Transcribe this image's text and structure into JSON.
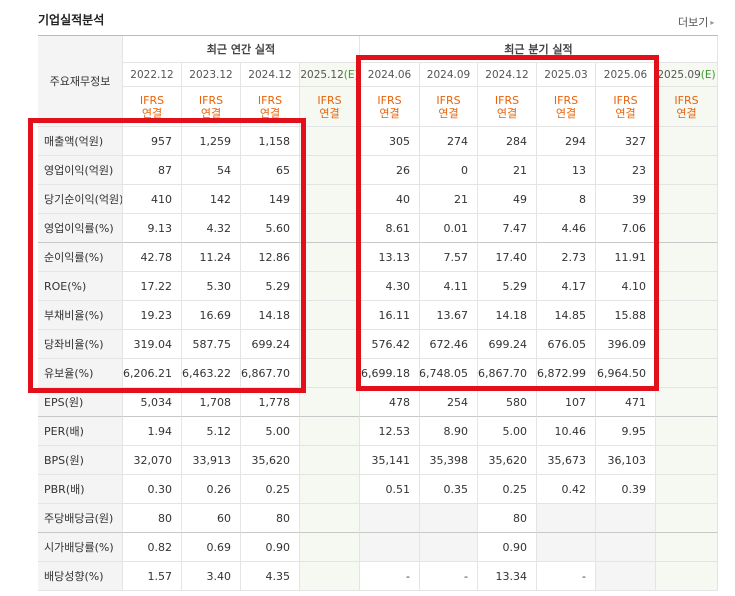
{
  "header": {
    "title": "기업실적분석",
    "more": "더보기"
  },
  "table": {
    "corner": "주요재무정보",
    "groups": [
      {
        "label": "최근 연간 실적",
        "span": 4
      },
      {
        "label": "최근 분기 실적",
        "span": 6
      }
    ],
    "columns": [
      {
        "period": "2022.12",
        "basis": [
          "IFRS",
          "연결"
        ]
      },
      {
        "period": "2023.12",
        "basis": [
          "IFRS",
          "연결"
        ]
      },
      {
        "period": "2024.12",
        "basis": [
          "IFRS",
          "연결"
        ]
      },
      {
        "period": "2025.12",
        "mark": "(E)",
        "basis": [
          "IFRS",
          "연결"
        ]
      },
      {
        "period": "2024.06",
        "basis": [
          "IFRS",
          "연결"
        ]
      },
      {
        "period": "2024.09",
        "basis": [
          "IFRS",
          "연결"
        ]
      },
      {
        "period": "2024.12",
        "basis": [
          "IFRS",
          "연결"
        ]
      },
      {
        "period": "2025.03",
        "basis": [
          "IFRS",
          "연결"
        ]
      },
      {
        "period": "2025.06",
        "basis": [
          "IFRS",
          "연결"
        ]
      },
      {
        "period": "2025.09",
        "mark": "(E)",
        "basis": [
          "IFRS",
          "연결"
        ]
      }
    ],
    "rows": [
      {
        "label": "매출액(억원)",
        "cells": [
          "957",
          "1,259",
          "1,158",
          null,
          "305",
          "274",
          "284",
          "294",
          "327",
          null
        ]
      },
      {
        "label": "영업이익(억원)",
        "cells": [
          "87",
          "54",
          "65",
          null,
          "26",
          "0",
          "21",
          "13",
          "23",
          null
        ]
      },
      {
        "label": "당기순이익(억원)",
        "cells": [
          "410",
          "142",
          "149",
          null,
          "40",
          "21",
          "49",
          "8",
          "39",
          null
        ]
      },
      {
        "label": "영업이익률(%)",
        "cells": [
          "9.13",
          "4.32",
          "5.60",
          null,
          "8.61",
          "0.01",
          "7.47",
          "4.46",
          "7.06",
          null
        ]
      },
      {
        "label": "순이익률(%)",
        "cells": [
          "42.78",
          "11.24",
          "12.86",
          null,
          "13.13",
          "7.57",
          "17.40",
          "2.73",
          "11.91",
          null
        ]
      },
      {
        "label": "ROE(%)",
        "cells": [
          "17.22",
          "5.30",
          "5.29",
          null,
          "4.30",
          "4.11",
          "5.29",
          "4.17",
          "4.10",
          null
        ]
      },
      {
        "label": "부채비율(%)",
        "cells": [
          "19.23",
          "16.69",
          "14.18",
          null,
          "16.11",
          "13.67",
          "14.18",
          "14.85",
          "15.88",
          null
        ]
      },
      {
        "label": "당좌비율(%)",
        "cells": [
          "319.04",
          "587.75",
          "699.24",
          null,
          "576.42",
          "672.46",
          "699.24",
          "676.05",
          "396.09",
          null
        ]
      },
      {
        "label": "유보율(%)",
        "cells": [
          "6,206.21",
          "6,463.22",
          "6,867.70",
          null,
          "6,699.18",
          "6,748.05",
          "6,867.70",
          "6,872.99",
          "6,964.50",
          null
        ]
      },
      {
        "label": "EPS(원)",
        "cells": [
          "5,034",
          "1,708",
          "1,778",
          null,
          "478",
          "254",
          "580",
          "107",
          "471",
          null
        ]
      },
      {
        "label": "PER(배)",
        "cells": [
          "1.94",
          "5.12",
          "5.00",
          null,
          "12.53",
          "8.90",
          "5.00",
          "10.46",
          "9.95",
          null
        ]
      },
      {
        "label": "BPS(원)",
        "cells": [
          "32,070",
          "33,913",
          "35,620",
          null,
          "35,141",
          "35,398",
          "35,620",
          "35,673",
          "36,103",
          null
        ]
      },
      {
        "label": "PBR(배)",
        "cells": [
          "0.30",
          "0.26",
          "0.25",
          null,
          "0.51",
          "0.35",
          "0.25",
          "0.42",
          "0.39",
          null
        ]
      },
      {
        "label": "주당배당금(원)",
        "cells": [
          "80",
          "60",
          "80",
          null,
          null,
          null,
          "80",
          null,
          null,
          null
        ]
      },
      {
        "label": "시가배당률(%)",
        "cells": [
          "0.82",
          "0.69",
          "0.90",
          null,
          null,
          null,
          "0.90",
          null,
          null,
          null
        ]
      },
      {
        "label": "배당성향(%)",
        "cells": [
          "1.57",
          "3.40",
          "4.35",
          null,
          "-",
          "-",
          "13.34",
          "-",
          null,
          null
        ]
      }
    ]
  }
}
